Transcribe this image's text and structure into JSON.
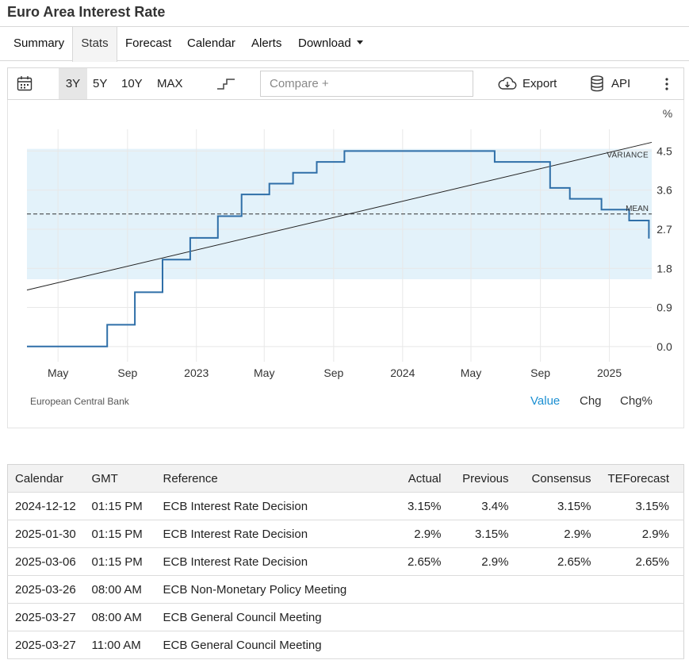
{
  "page": {
    "title": "Euro Area Interest Rate"
  },
  "tabs": [
    {
      "label": "Summary"
    },
    {
      "label": "Stats",
      "active": true
    },
    {
      "label": "Forecast"
    },
    {
      "label": "Calendar"
    },
    {
      "label": "Alerts"
    },
    {
      "label": "Download",
      "dropdown": true
    }
  ],
  "toolbar": {
    "calendar_icon": "calendar-icon",
    "ranges": [
      "3Y",
      "5Y",
      "10Y",
      "MAX"
    ],
    "active_range": "3Y",
    "step_icon": "step-line-icon",
    "compare_placeholder": "Compare +",
    "export_label": "Export",
    "export_icon": "cloud-download-icon",
    "api_label": "API",
    "api_icon": "database-icon",
    "more_icon": "vertical-dots-icon"
  },
  "chart_data": {
    "type": "line",
    "step": true,
    "unit_label": "%",
    "ylim": [
      -0.35,
      5.0
    ],
    "y_ticks": [
      0.0,
      0.9,
      1.8,
      2.7,
      3.6,
      4.5
    ],
    "y_tick_labels": [
      "0.0",
      "0.9",
      "1.8",
      "2.7",
      "3.6",
      "4.5"
    ],
    "x_range": [
      "2022-03-07",
      "2025-03-17"
    ],
    "x_ticks": [
      {
        "date": "2022-05-01",
        "label": "May"
      },
      {
        "date": "2022-09-01",
        "label": "Sep"
      },
      {
        "date": "2023-01-01",
        "label": "2023"
      },
      {
        "date": "2023-05-01",
        "label": "May"
      },
      {
        "date": "2023-09-01",
        "label": "Sep"
      },
      {
        "date": "2024-01-01",
        "label": "2024"
      },
      {
        "date": "2024-05-01",
        "label": "May"
      },
      {
        "date": "2024-09-01",
        "label": "Sep"
      },
      {
        "date": "2025-01-01",
        "label": "2025"
      }
    ],
    "series": [
      {
        "color": "#2f6fa8",
        "points": [
          [
            "2022-03-07",
            0.0
          ],
          [
            "2022-07-27",
            0.5
          ],
          [
            "2022-09-14",
            1.25
          ],
          [
            "2022-11-02",
            2.0
          ],
          [
            "2022-12-21",
            2.5
          ],
          [
            "2023-02-08",
            3.0
          ],
          [
            "2023-03-22",
            3.5
          ],
          [
            "2023-05-10",
            3.75
          ],
          [
            "2023-06-21",
            4.0
          ],
          [
            "2023-08-02",
            4.25
          ],
          [
            "2023-09-20",
            4.5
          ],
          [
            "2024-06-12",
            4.25
          ],
          [
            "2024-09-18",
            3.65
          ],
          [
            "2024-10-23",
            3.4
          ],
          [
            "2024-12-18",
            3.15
          ],
          [
            "2025-02-05",
            2.9
          ],
          [
            "2025-03-12",
            2.65
          ]
        ]
      }
    ],
    "mean": {
      "label": "MEAN",
      "value": 3.05
    },
    "variance_band": {
      "label": "VARIANCE",
      "low": 1.55,
      "high": 4.55,
      "color": "#e3f2fa"
    },
    "trend_line": {
      "start": [
        "2022-03-07",
        1.3
      ],
      "end": [
        "2025-03-17",
        4.7
      ]
    },
    "source": "European Central Bank",
    "modes": [
      "Value",
      "Chg",
      "Chg%"
    ],
    "active_mode": "Value"
  },
  "calendar": {
    "columns": [
      "Calendar",
      "GMT",
      "Reference",
      "Actual",
      "Previous",
      "Consensus",
      "TEForecast"
    ],
    "rows": [
      [
        "2024-12-12",
        "01:15 PM",
        "ECB Interest Rate Decision",
        "3.15%",
        "3.4%",
        "3.15%",
        "3.15%"
      ],
      [
        "2025-01-30",
        "01:15 PM",
        "ECB Interest Rate Decision",
        "2.9%",
        "3.15%",
        "2.9%",
        "2.9%"
      ],
      [
        "2025-03-06",
        "01:15 PM",
        "ECB Interest Rate Decision",
        "2.65%",
        "2.9%",
        "2.65%",
        "2.65%"
      ],
      [
        "2025-03-26",
        "08:00 AM",
        "ECB Non-Monetary Policy Meeting",
        "",
        "",
        "",
        ""
      ],
      [
        "2025-03-27",
        "08:00 AM",
        "ECB General Council Meeting",
        "",
        "",
        "",
        ""
      ],
      [
        "2025-03-27",
        "11:00 AM",
        "ECB General Council Meeting",
        "",
        "",
        "",
        ""
      ]
    ]
  }
}
